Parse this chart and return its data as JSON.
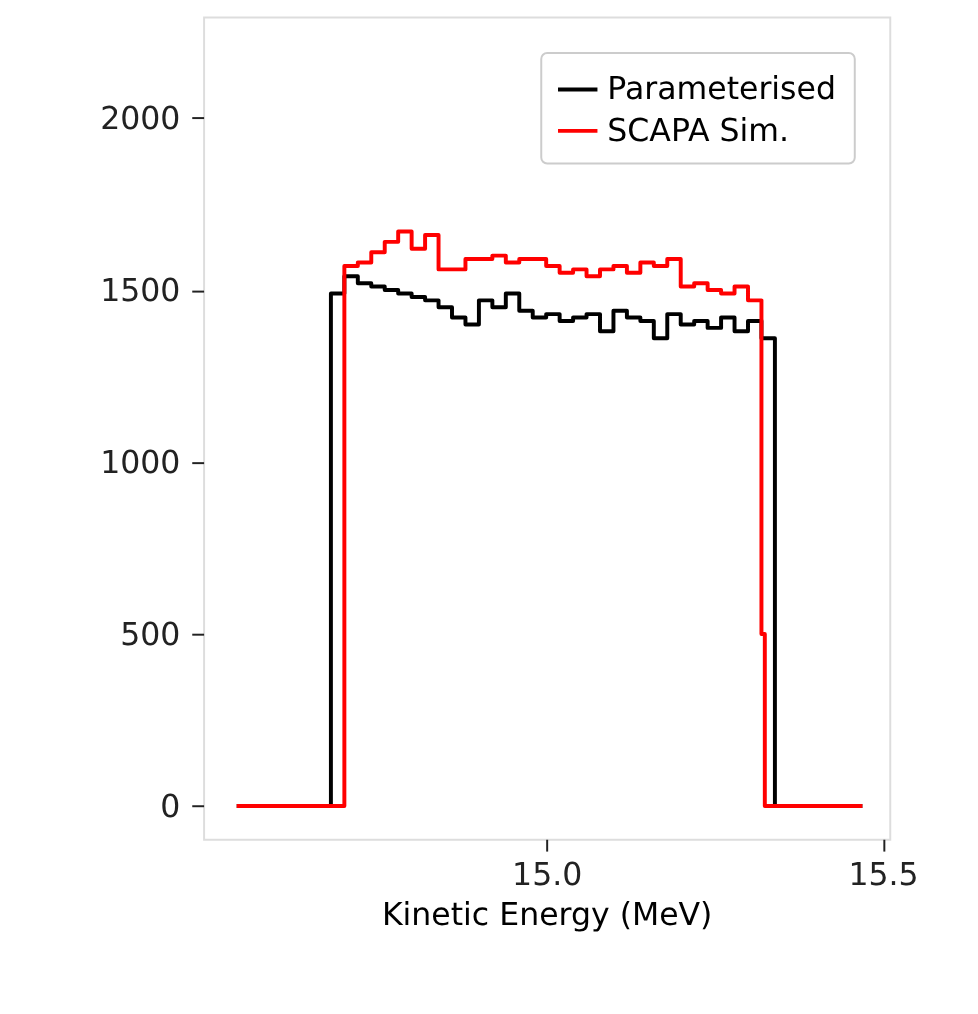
{
  "chart_data": {
    "type": "step",
    "xlabel": "Kinetic Energy (MeV)",
    "xlim": [
      14.49,
      15.51
    ],
    "ylim": [
      -95,
      2295
    ],
    "xticks": [
      {
        "value": 15.0,
        "label": "15.0"
      },
      {
        "value": 15.5,
        "label": "15.5"
      }
    ],
    "yticks": [
      0,
      500,
      1000,
      1500,
      2000
    ],
    "grid": false,
    "legend": "top right",
    "line_style": "solid",
    "marker": "none",
    "series": [
      {
        "name": "Parameterised",
        "color": "#000000",
        "x": [
          14.54,
          14.68,
          14.7,
          14.72,
          14.74,
          14.76,
          14.78,
          14.8,
          14.82,
          14.84,
          14.86,
          14.88,
          14.9,
          14.92,
          14.94,
          14.96,
          14.98,
          15.0,
          15.02,
          15.04,
          15.06,
          15.08,
          15.1,
          15.12,
          15.14,
          15.16,
          15.18,
          15.2,
          15.22,
          15.24,
          15.26,
          15.28,
          15.3,
          15.32,
          15.34,
          15.47
        ],
        "values": [
          0,
          1490,
          1540,
          1520,
          1510,
          1500,
          1490,
          1480,
          1470,
          1450,
          1420,
          1400,
          1470,
          1450,
          1490,
          1440,
          1420,
          1430,
          1410,
          1420,
          1430,
          1380,
          1440,
          1420,
          1410,
          1360,
          1430,
          1400,
          1410,
          1390,
          1420,
          1380,
          1410,
          1360,
          0,
          0
        ]
      },
      {
        "name": "SCAPA Sim.",
        "color": "#ff0000",
        "x": [
          14.54,
          14.7,
          14.72,
          14.74,
          14.76,
          14.78,
          14.8,
          14.82,
          14.84,
          14.86,
          14.88,
          14.9,
          14.92,
          14.94,
          14.96,
          14.98,
          15.0,
          15.02,
          15.04,
          15.06,
          15.08,
          15.1,
          15.12,
          15.14,
          15.16,
          15.18,
          15.2,
          15.22,
          15.24,
          15.26,
          15.28,
          15.3,
          15.32,
          15.325,
          15.47
        ],
        "values": [
          0,
          1570,
          1580,
          1610,
          1640,
          1670,
          1620,
          1660,
          1560,
          1560,
          1590,
          1590,
          1600,
          1580,
          1590,
          1590,
          1570,
          1550,
          1560,
          1540,
          1560,
          1570,
          1550,
          1580,
          1570,
          1590,
          1510,
          1520,
          1500,
          1490,
          1510,
          1470,
          500,
          0,
          0
        ]
      }
    ]
  }
}
